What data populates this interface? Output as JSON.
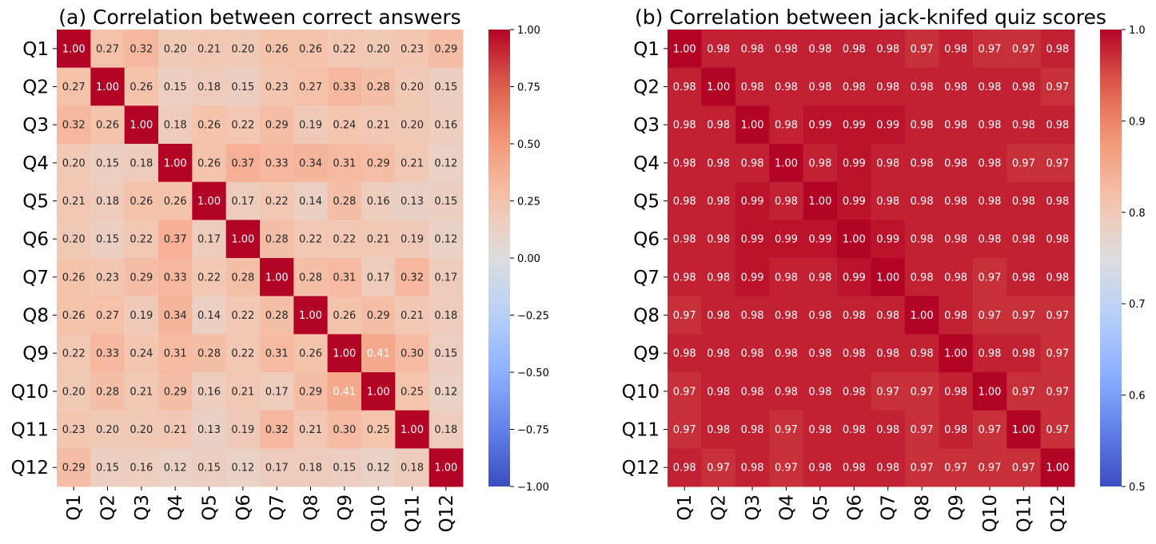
{
  "chart_data": [
    {
      "type": "heatmap",
      "title": "(a) Correlation between correct answers",
      "xlabel": "",
      "ylabel": "",
      "x_categories": [
        "Q1",
        "Q2",
        "Q3",
        "Q4",
        "Q5",
        "Q6",
        "Q7",
        "Q8",
        "Q9",
        "Q10",
        "Q11",
        "Q12"
      ],
      "y_categories": [
        "Q1",
        "Q2",
        "Q3",
        "Q4",
        "Q5",
        "Q6",
        "Q7",
        "Q8",
        "Q9",
        "Q10",
        "Q11",
        "Q12"
      ],
      "values": [
        [
          1.0,
          0.27,
          0.32,
          0.2,
          0.21,
          0.2,
          0.26,
          0.26,
          0.22,
          0.2,
          0.23,
          0.29
        ],
        [
          0.27,
          1.0,
          0.26,
          0.15,
          0.18,
          0.15,
          0.23,
          0.27,
          0.33,
          0.28,
          0.2,
          0.15
        ],
        [
          0.32,
          0.26,
          1.0,
          0.18,
          0.26,
          0.22,
          0.29,
          0.19,
          0.24,
          0.21,
          0.2,
          0.16
        ],
        [
          0.2,
          0.15,
          0.18,
          1.0,
          0.26,
          0.37,
          0.33,
          0.34,
          0.31,
          0.29,
          0.21,
          0.12
        ],
        [
          0.21,
          0.18,
          0.26,
          0.26,
          1.0,
          0.17,
          0.22,
          0.14,
          0.28,
          0.16,
          0.13,
          0.15
        ],
        [
          0.2,
          0.15,
          0.22,
          0.37,
          0.17,
          1.0,
          0.28,
          0.22,
          0.22,
          0.21,
          0.19,
          0.12
        ],
        [
          0.26,
          0.23,
          0.29,
          0.33,
          0.22,
          0.28,
          1.0,
          0.28,
          0.31,
          0.17,
          0.32,
          0.17
        ],
        [
          0.26,
          0.27,
          0.19,
          0.34,
          0.14,
          0.22,
          0.28,
          1.0,
          0.26,
          0.29,
          0.21,
          0.18
        ],
        [
          0.22,
          0.33,
          0.24,
          0.31,
          0.28,
          0.22,
          0.31,
          0.26,
          1.0,
          0.41,
          0.3,
          0.15
        ],
        [
          0.2,
          0.28,
          0.21,
          0.29,
          0.16,
          0.21,
          0.17,
          0.29,
          0.41,
          1.0,
          0.25,
          0.12
        ],
        [
          0.23,
          0.2,
          0.2,
          0.21,
          0.13,
          0.19,
          0.32,
          0.21,
          0.3,
          0.25,
          1.0,
          0.18
        ],
        [
          0.29,
          0.15,
          0.16,
          0.12,
          0.15,
          0.12,
          0.17,
          0.18,
          0.15,
          0.12,
          0.18,
          1.0
        ]
      ],
      "colormap": "coolwarm",
      "vmin": -1.0,
      "vmax": 1.0,
      "colorbar_ticks": [
        "−1.00",
        "−0.75",
        "−0.50",
        "−0.25",
        "0.00",
        "0.25",
        "0.50",
        "0.75",
        "1.00"
      ],
      "colorbar_tick_values": [
        -1.0,
        -0.75,
        -0.5,
        -0.25,
        0.0,
        0.25,
        0.5,
        0.75,
        1.0
      ]
    },
    {
      "type": "heatmap",
      "title": "(b) Correlation between jack-knifed quiz scores",
      "xlabel": "",
      "ylabel": "",
      "x_categories": [
        "Q1",
        "Q2",
        "Q3",
        "Q4",
        "Q5",
        "Q6",
        "Q7",
        "Q8",
        "Q9",
        "Q10",
        "Q11",
        "Q12"
      ],
      "y_categories": [
        "Q1",
        "Q2",
        "Q3",
        "Q4",
        "Q5",
        "Q6",
        "Q7",
        "Q8",
        "Q9",
        "Q10",
        "Q11",
        "Q12"
      ],
      "values": [
        [
          1.0,
          0.98,
          0.98,
          0.98,
          0.98,
          0.98,
          0.98,
          0.97,
          0.98,
          0.97,
          0.97,
          0.98
        ],
        [
          0.98,
          1.0,
          0.98,
          0.98,
          0.98,
          0.98,
          0.98,
          0.98,
          0.98,
          0.98,
          0.98,
          0.97
        ],
        [
          0.98,
          0.98,
          1.0,
          0.98,
          0.99,
          0.99,
          0.99,
          0.98,
          0.98,
          0.98,
          0.98,
          0.98
        ],
        [
          0.98,
          0.98,
          0.98,
          1.0,
          0.98,
          0.99,
          0.98,
          0.98,
          0.98,
          0.98,
          0.97,
          0.97
        ],
        [
          0.98,
          0.98,
          0.99,
          0.98,
          1.0,
          0.99,
          0.98,
          0.98,
          0.98,
          0.98,
          0.98,
          0.98
        ],
        [
          0.98,
          0.98,
          0.99,
          0.99,
          0.99,
          1.0,
          0.99,
          0.98,
          0.98,
          0.98,
          0.98,
          0.98
        ],
        [
          0.98,
          0.98,
          0.99,
          0.98,
          0.98,
          0.99,
          1.0,
          0.98,
          0.98,
          0.97,
          0.98,
          0.98
        ],
        [
          0.97,
          0.98,
          0.98,
          0.98,
          0.98,
          0.98,
          0.98,
          1.0,
          0.98,
          0.97,
          0.97,
          0.97
        ],
        [
          0.98,
          0.98,
          0.98,
          0.98,
          0.98,
          0.98,
          0.98,
          0.98,
          1.0,
          0.98,
          0.98,
          0.97
        ],
        [
          0.97,
          0.98,
          0.98,
          0.98,
          0.98,
          0.98,
          0.97,
          0.97,
          0.98,
          1.0,
          0.97,
          0.97
        ],
        [
          0.97,
          0.98,
          0.98,
          0.97,
          0.98,
          0.98,
          0.98,
          0.97,
          0.98,
          0.97,
          1.0,
          0.97
        ],
        [
          0.98,
          0.97,
          0.98,
          0.97,
          0.98,
          0.98,
          0.98,
          0.97,
          0.97,
          0.97,
          0.97,
          1.0
        ]
      ],
      "colormap": "coolwarm",
      "vmin": 0.5,
      "vmax": 1.0,
      "colorbar_ticks": [
        "0.5",
        "0.6",
        "0.7",
        "0.8",
        "0.9",
        "1.0"
      ],
      "colorbar_tick_values": [
        0.5,
        0.6,
        0.7,
        0.8,
        0.9,
        1.0
      ]
    }
  ]
}
